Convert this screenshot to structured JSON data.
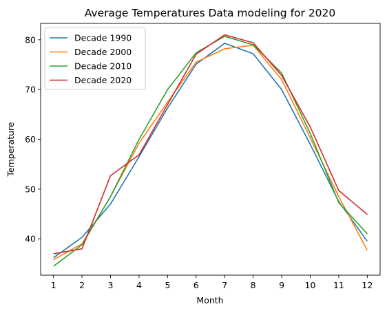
{
  "chart_data": {
    "type": "line",
    "title": "Average Temperatures Data modeling for 2020",
    "xlabel": "Month",
    "ylabel": "Temperature",
    "x": [
      1,
      2,
      3,
      4,
      5,
      6,
      7,
      8,
      9,
      10,
      11,
      12
    ],
    "xlim": [
      0.55,
      12.45
    ],
    "ylim": [
      32.7,
      83.3
    ],
    "yticks": [
      40,
      50,
      60,
      70,
      80
    ],
    "legend_placement": "upper-left",
    "grid": false,
    "series": [
      {
        "name": "Decade 1990",
        "color": "#1f77b4",
        "values": [
          36.2,
          40.3,
          47.0,
          56.5,
          66.3,
          75.1,
          79.3,
          77.2,
          70.0,
          59.0,
          47.5,
          39.5
        ]
      },
      {
        "name": "Decade 2000",
        "color": "#ff7f0e",
        "values": [
          35.8,
          39.0,
          48.5,
          59.2,
          67.5,
          75.5,
          78.2,
          78.9,
          72.0,
          60.3,
          48.5,
          37.7
        ]
      },
      {
        "name": "Decade 2010",
        "color": "#2ca02c",
        "values": [
          34.5,
          38.8,
          48.5,
          60.0,
          70.0,
          77.4,
          80.7,
          79.0,
          73.3,
          61.2,
          47.3,
          41.0
        ]
      },
      {
        "name": "Decade 2020",
        "color": "#d62728",
        "values": [
          37.0,
          38.0,
          52.7,
          56.9,
          67.0,
          77.1,
          81.0,
          79.4,
          72.8,
          62.5,
          49.7,
          44.9
        ]
      }
    ]
  }
}
